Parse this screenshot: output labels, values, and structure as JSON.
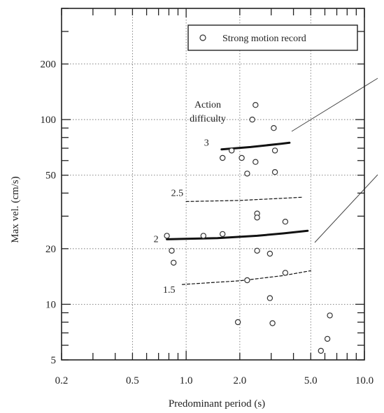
{
  "chart_data": {
    "type": "scatter",
    "xlabel": "Predominant period (s)",
    "ylabel": "Max vel. (cm/s)",
    "x_scale": "log",
    "y_scale": "log",
    "xlim": [
      0.2,
      10.0
    ],
    "ylim": [
      5,
      400
    ],
    "x_ticks": [
      {
        "value": 0.2,
        "label": "0.2"
      },
      {
        "value": 0.5,
        "label": "0.5"
      },
      {
        "value": 1.0,
        "label": "1.0"
      },
      {
        "value": 2.0,
        "label": "2.0"
      },
      {
        "value": 5.0,
        "label": "5.0"
      },
      {
        "value": 10.0,
        "label": "10.0"
      }
    ],
    "y_ticks": [
      {
        "value": 5,
        "label": "5"
      },
      {
        "value": 10,
        "label": "10"
      },
      {
        "value": 20,
        "label": "20"
      },
      {
        "value": 50,
        "label": "50"
      },
      {
        "value": 100,
        "label": "100"
      },
      {
        "value": 200,
        "label": "200"
      }
    ],
    "grid": true,
    "legend": {
      "position": "top-right",
      "entries": [
        "Strong motion record"
      ]
    },
    "series": [
      {
        "name": "Strong motion record",
        "marker": "open-circle",
        "points": [
          [
            2.45,
            120
          ],
          [
            2.35,
            100
          ],
          [
            3.1,
            90
          ],
          [
            1.8,
            68
          ],
          [
            3.15,
            68
          ],
          [
            1.6,
            62
          ],
          [
            2.05,
            62
          ],
          [
            2.45,
            59
          ],
          [
            2.2,
            51
          ],
          [
            3.15,
            52
          ],
          [
            2.5,
            31
          ],
          [
            2.5,
            29.5
          ],
          [
            3.6,
            28
          ],
          [
            0.78,
            23.5
          ],
          [
            1.25,
            23.5
          ],
          [
            1.6,
            24
          ],
          [
            0.83,
            19.5
          ],
          [
            2.5,
            19.5
          ],
          [
            2.95,
            18.8
          ],
          [
            0.85,
            16.8
          ],
          [
            3.6,
            14.8
          ],
          [
            2.2,
            13.5
          ],
          [
            2.95,
            10.8
          ],
          [
            1.95,
            8.0
          ],
          [
            3.05,
            7.9
          ],
          [
            6.4,
            8.7
          ],
          [
            6.2,
            6.5
          ],
          [
            5.7,
            5.6
          ]
        ]
      }
    ],
    "curves": [
      {
        "label": "3",
        "style": "solid-bold",
        "points": [
          [
            1.58,
            69
          ],
          [
            2.3,
            71
          ],
          [
            3.4,
            74
          ],
          [
            3.8,
            75
          ]
        ]
      },
      {
        "label": "2.5",
        "style": "dashed",
        "points": [
          [
            1.0,
            36
          ],
          [
            2.0,
            36.5
          ],
          [
            3.5,
            37.5
          ],
          [
            4.5,
            38
          ]
        ]
      },
      {
        "label": "2",
        "style": "solid-bold",
        "points": [
          [
            0.78,
            22.5
          ],
          [
            1.5,
            22.8
          ],
          [
            2.5,
            23.5
          ],
          [
            3.5,
            24.2
          ],
          [
            4.8,
            25
          ]
        ]
      },
      {
        "label": "1.5",
        "style": "dashed",
        "points": [
          [
            0.95,
            12.8
          ],
          [
            2.0,
            13.4
          ],
          [
            3.5,
            14.3
          ],
          [
            5.0,
            15.2
          ]
        ]
      }
    ],
    "annotations": [
      {
        "id": "action",
        "lines": [
          "Action",
          "difficulty"
        ]
      }
    ]
  }
}
